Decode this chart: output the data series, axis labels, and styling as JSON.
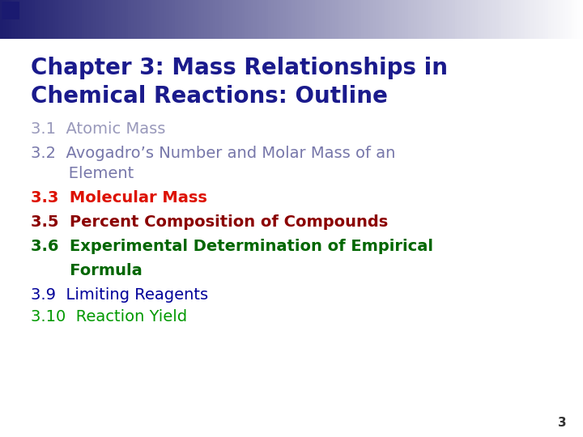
{
  "title_line1": "Chapter 3: Mass Relationships in",
  "title_line2": "Chemical Reactions: Outline",
  "title_color": "#1a1a8c",
  "background_color": "#ffffff",
  "slide_number": "3",
  "items": [
    {
      "text": "3.1  Atomic Mass",
      "color": "#9999bb",
      "indent": 0,
      "bold": false
    },
    {
      "text": "3.2  Avogadro’s Number and Molar Mass of an",
      "color": "#7777aa",
      "indent": 0,
      "bold": false
    },
    {
      "text": "   Element",
      "color": "#7777aa",
      "indent": 1,
      "bold": false
    },
    {
      "text": "3.3  Molecular Mass",
      "color": "#dd1100",
      "indent": 0,
      "bold": true
    },
    {
      "text": "3.5  Percent Composition of Compounds",
      "color": "#8b0000",
      "indent": 0,
      "bold": true
    },
    {
      "text": "3.6  Experimental Determination of Empirical",
      "color": "#006600",
      "indent": 0,
      "bold": true
    },
    {
      "text": "   Formula",
      "color": "#006600",
      "indent": 1,
      "bold": true
    },
    {
      "text": "3.9  Limiting Reagents",
      "color": "#000099",
      "indent": 0,
      "bold": false
    },
    {
      "text": "3.10  Reaction Yield",
      "color": "#009900",
      "indent": 0,
      "bold": false
    }
  ],
  "title_fontsize": 20,
  "body_fontsize": 14,
  "slide_num_fontsize": 11
}
